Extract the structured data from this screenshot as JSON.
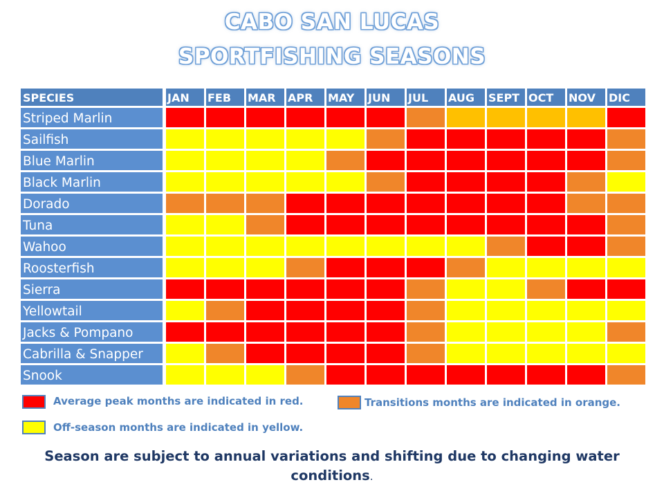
{
  "title": {
    "line1": "CABO SAN LUCAS",
    "line2": "SPORTFISHING SEASONS"
  },
  "colors": {
    "header_blue": "#4f81bd",
    "row_label_blue": "#5b8fd0",
    "peak_red": "#ff0000",
    "transition_orange": "#f0862a",
    "offseason_yellow": "#ffff00",
    "light_orange": "#ffc000"
  },
  "chart_data": {
    "type": "heatmap",
    "corner_label": "SPECIES",
    "months": [
      "JAN",
      "FEB",
      "MAR",
      "APR",
      "MAY",
      "JUN",
      "JUL",
      "AUG",
      "SEPT",
      "OCT",
      "NOV",
      "DIC"
    ],
    "species": [
      {
        "name": "Striped Marlin",
        "values": [
          "R",
          "R",
          "R",
          "R",
          "R",
          "R",
          "O",
          "L",
          "L",
          "L",
          "L",
          "R"
        ]
      },
      {
        "name": "Sailfish",
        "values": [
          "Y",
          "Y",
          "Y",
          "Y",
          "Y",
          "O",
          "R",
          "R",
          "R",
          "R",
          "R",
          "O"
        ]
      },
      {
        "name": "Blue Marlin",
        "values": [
          "Y",
          "Y",
          "Y",
          "Y",
          "O",
          "R",
          "R",
          "R",
          "R",
          "R",
          "R",
          "O"
        ]
      },
      {
        "name": "Black Marlin",
        "values": [
          "Y",
          "Y",
          "Y",
          "Y",
          "Y",
          "O",
          "R",
          "R",
          "R",
          "R",
          "O",
          "Y"
        ]
      },
      {
        "name": "Dorado",
        "values": [
          "O",
          "O",
          "O",
          "R",
          "R",
          "R",
          "R",
          "R",
          "R",
          "R",
          "O",
          "O"
        ]
      },
      {
        "name": "Tuna",
        "values": [
          "Y",
          "Y",
          "O",
          "R",
          "R",
          "R",
          "R",
          "R",
          "R",
          "R",
          "R",
          "O"
        ]
      },
      {
        "name": "Wahoo",
        "values": [
          "Y",
          "Y",
          "Y",
          "Y",
          "Y",
          "Y",
          "Y",
          "Y",
          "O",
          "R",
          "R",
          "O"
        ]
      },
      {
        "name": "Roosterfish",
        "values": [
          "Y",
          "Y",
          "Y",
          "O",
          "R",
          "R",
          "R",
          "O",
          "Y",
          "Y",
          "Y",
          "Y"
        ]
      },
      {
        "name": "Sierra",
        "values": [
          "R",
          "R",
          "R",
          "R",
          "R",
          "R",
          "O",
          "Y",
          "Y",
          "O",
          "R",
          "R"
        ]
      },
      {
        "name": "Yellowtail",
        "values": [
          "Y",
          "O",
          "R",
          "R",
          "R",
          "R",
          "O",
          "Y",
          "Y",
          "Y",
          "Y",
          "Y"
        ]
      },
      {
        "name": "Jacks & Pompano",
        "values": [
          "R",
          "R",
          "R",
          "R",
          "R",
          "R",
          "O",
          "Y",
          "Y",
          "Y",
          "Y",
          "O"
        ]
      },
      {
        "name": "Cabrilla & Snapper",
        "values": [
          "Y",
          "O",
          "R",
          "R",
          "R",
          "R",
          "O",
          "Y",
          "Y",
          "Y",
          "Y",
          "Y"
        ]
      },
      {
        "name": "Snook",
        "values": [
          "Y",
          "Y",
          "Y",
          "O",
          "R",
          "R",
          "R",
          "R",
          "R",
          "R",
          "R",
          "O"
        ]
      }
    ],
    "value_key": {
      "R": "peak",
      "O": "transition",
      "Y": "off-season",
      "L": "light-orange"
    }
  },
  "legend": {
    "peak": "Average peak months are indicated in red.",
    "transition": "Transitions months are indicated in orange.",
    "offseason": "Off-season months are indicated in yellow."
  },
  "footnote": {
    "text": "Season are subject to annual variations and shifting due to changing water conditions",
    "period": "."
  }
}
